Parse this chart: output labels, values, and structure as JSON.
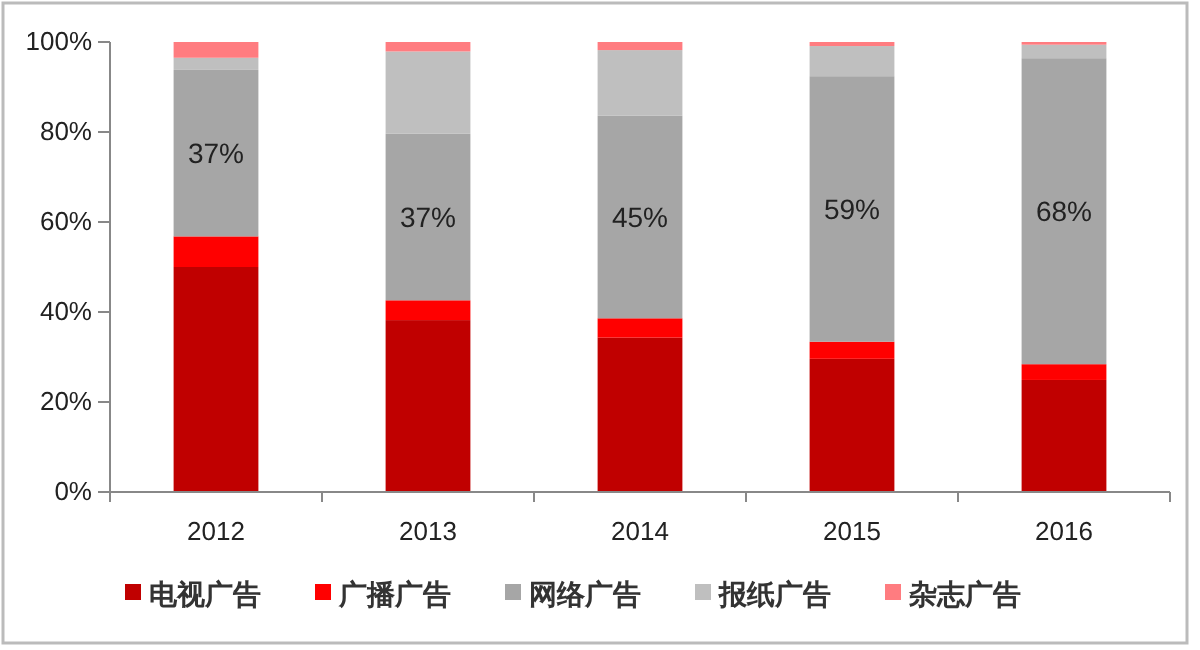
{
  "chart_data": {
    "type": "bar",
    "stacked": true,
    "categories": [
      "2012",
      "2013",
      "2014",
      "2015",
      "2016"
    ],
    "series": [
      {
        "name": "电视广告",
        "color": "#c00000",
        "values": [
          50,
          38.2,
          34.3,
          29.6,
          24.9
        ]
      },
      {
        "name": "广播广告",
        "color": "#ff0000",
        "values": [
          6.8,
          4.4,
          4.3,
          3.8,
          3.5
        ]
      },
      {
        "name": "网络广告",
        "color": "#a6a6a6",
        "values": [
          37,
          37,
          45,
          59,
          68
        ],
        "value_labels": [
          "37%",
          "37%",
          "45%",
          "59%",
          "68%"
        ]
      },
      {
        "name": "报纸广告",
        "color": "#bfbfbf",
        "values": [
          2.7,
          18.3,
          14.6,
          6.7,
          3.0
        ]
      },
      {
        "name": "杂志广告",
        "color": "#ff7c80",
        "values": [
          3.5,
          2.1,
          1.8,
          0.9,
          0.6
        ]
      }
    ],
    "ylim": [
      0,
      100
    ],
    "yticks": [
      {
        "value": 0,
        "label": "0%"
      },
      {
        "value": 20,
        "label": "20%"
      },
      {
        "value": 40,
        "label": "40%"
      },
      {
        "value": 60,
        "label": "60%"
      },
      {
        "value": 80,
        "label": "80%"
      },
      {
        "value": 100,
        "label": "100%"
      }
    ],
    "grid": false,
    "legend": "bottom"
  }
}
